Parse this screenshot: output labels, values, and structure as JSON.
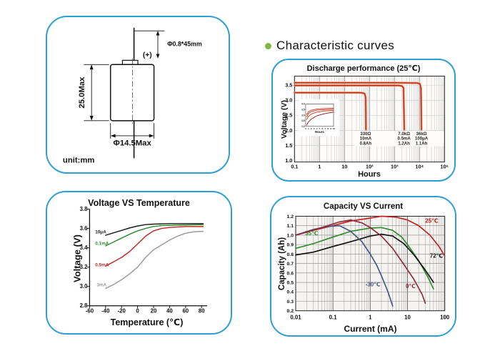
{
  "section": {
    "title": "Characteristic curves",
    "bullet_color": "#7cb93e"
  },
  "colors": {
    "panel_border": "#2e9fd4",
    "curve_red": "#c43018"
  },
  "diagram": {
    "pin_label": "Φ0.8*45mm",
    "terminal_label": "(+)",
    "height_label": "25.0Max",
    "diameter_label": "Φ14.5Max",
    "unit_label": "unit:mm"
  },
  "chart_data": [
    {
      "id": "discharge",
      "type": "line",
      "title": "Discharge performance (25℃)",
      "xlabel": "Hours",
      "ylabel": "Voltage (V)",
      "xscale": "log",
      "xlim": [
        0.1,
        100000
      ],
      "ylim": [
        0.95,
        3.8
      ],
      "grid": true,
      "xticks": [
        {
          "v": 0.1,
          "label": "0.1"
        },
        {
          "v": 1,
          "label": "1"
        },
        {
          "v": 10,
          "label": "10"
        },
        {
          "v": 100,
          "label": "10²"
        },
        {
          "v": 1000,
          "label": "10³"
        },
        {
          "v": 10000,
          "label": "10⁴"
        },
        {
          "v": 100000,
          "label": "10⁵"
        }
      ],
      "yticks": [
        1.0,
        1.5,
        2.0,
        2.5,
        3.0,
        3.5
      ],
      "series": [
        {
          "name": "330Ω 10mA 0.8Ah",
          "color": "#c43018",
          "points": [
            [
              0.1,
              3.25
            ],
            [
              10,
              3.25
            ],
            [
              40,
              3.25
            ],
            [
              55,
              3.24
            ],
            [
              65,
              3.21
            ],
            [
              70,
              3.1
            ],
            [
              72,
              2.02
            ]
          ]
        },
        {
          "name": "7.0kΩ 0.5mA 1.2Ah",
          "color": "#c43018",
          "points": [
            [
              0.1,
              3.49
            ],
            [
              100,
              3.49
            ],
            [
              1500,
              3.49
            ],
            [
              2000,
              3.47
            ],
            [
              2300,
              3.41
            ],
            [
              2450,
              2.02
            ]
          ]
        },
        {
          "name": "36kΩ 100μA 1.1Ah",
          "color": "#c43018",
          "points": [
            [
              0.1,
              3.58
            ],
            [
              1000,
              3.58
            ],
            [
              8000,
              3.57
            ],
            [
              10500,
              3.54
            ],
            [
              11500,
              3.4
            ],
            [
              12000,
              2.02
            ]
          ]
        }
      ],
      "annotations": [
        {
          "x": 70,
          "y": 1.84,
          "lines": [
            "330Ω",
            "10mA",
            "0.8Ah"
          ],
          "color": "#222"
        },
        {
          "x": 2400,
          "y": 1.84,
          "lines": [
            "7.0kΩ",
            "0.5mA",
            "1.2Ah"
          ],
          "color": "#222"
        },
        {
          "x": 12000,
          "y": 1.84,
          "lines": [
            "36kΩ",
            "100μA",
            "1.1Ah"
          ],
          "color": "#222"
        }
      ],
      "inset": {
        "xlabel": "Hours",
        "xlim": [
          0,
          10
        ],
        "ylim": [
          2.0,
          4.0
        ],
        "xticks": [
          0,
          1,
          2,
          3,
          4,
          5,
          6,
          7,
          8,
          9,
          10
        ],
        "yticks": [
          2.0,
          2.5,
          3.0,
          3.5,
          4.0
        ],
        "series": [
          {
            "color": "#c43018",
            "points": [
              [
                0.3,
                3.05
              ],
              [
                1,
                3.3
              ],
              [
                2,
                3.45
              ],
              [
                4,
                3.55
              ],
              [
                7,
                3.6
              ],
              [
                10,
                3.62
              ]
            ]
          },
          {
            "color": "#c43018",
            "points": [
              [
                0.3,
                2.85
              ],
              [
                1,
                3.15
              ],
              [
                2,
                3.32
              ],
              [
                4,
                3.45
              ],
              [
                7,
                3.5
              ],
              [
                10,
                3.52
              ]
            ]
          },
          {
            "color": "#c43018",
            "points": [
              [
                0.3,
                2.6
              ],
              [
                1,
                2.9
              ],
              [
                2,
                3.1
              ],
              [
                4,
                3.28
              ],
              [
                7,
                3.38
              ],
              [
                10,
                3.42
              ]
            ]
          },
          {
            "color": "#8a1510",
            "points": [
              [
                0.3,
                2.1
              ],
              [
                1,
                2.4
              ],
              [
                2,
                2.65
              ],
              [
                4,
                2.95
              ],
              [
                7,
                3.15
              ],
              [
                10,
                3.28
              ]
            ]
          }
        ]
      }
    },
    {
      "id": "voltage-temp",
      "type": "line",
      "title": "Voltage VS Temperature",
      "xlabel": "Temperature (℃)",
      "ylabel": "Voltage (V)",
      "xscale": "linear",
      "xlim": [
        -60,
        87
      ],
      "ylim": [
        2.8,
        3.8
      ],
      "grid": false,
      "xticks": [
        -60,
        -40,
        -20,
        0,
        20,
        40,
        60,
        80
      ],
      "yticks": [
        2.8,
        3.0,
        3.2,
        3.4,
        3.6,
        3.8
      ],
      "series": [
        {
          "name": "10μA",
          "color": "#1a1a1a",
          "label_at": [
            -53,
            3.55
          ],
          "points": [
            [
              -40,
              3.53
            ],
            [
              -30,
              3.555
            ],
            [
              -20,
              3.58
            ],
            [
              -10,
              3.605
            ],
            [
              0,
              3.625
            ],
            [
              10,
              3.64
            ],
            [
              20,
              3.645
            ],
            [
              40,
              3.65
            ],
            [
              60,
              3.65
            ],
            [
              82,
              3.65
            ]
          ]
        },
        {
          "name": "0.1mA",
          "color": "#2e8b2e",
          "label_at": [
            -53,
            3.43
          ],
          "points": [
            [
              -40,
              3.42
            ],
            [
              -30,
              3.46
            ],
            [
              -20,
              3.5
            ],
            [
              -10,
              3.54
            ],
            [
              0,
              3.575
            ],
            [
              10,
              3.6
            ],
            [
              20,
              3.62
            ],
            [
              30,
              3.63
            ],
            [
              50,
              3.635
            ],
            [
              82,
              3.64
            ]
          ]
        },
        {
          "name": "0.5mA",
          "color": "#c02828",
          "label_at": [
            -53,
            3.21
          ],
          "points": [
            [
              -40,
              3.21
            ],
            [
              -30,
              3.255
            ],
            [
              -20,
              3.3
            ],
            [
              -10,
              3.36
            ],
            [
              0,
              3.44
            ],
            [
              10,
              3.52
            ],
            [
              20,
              3.575
            ],
            [
              30,
              3.6
            ],
            [
              40,
              3.61
            ],
            [
              60,
              3.62
            ],
            [
              82,
              3.62
            ]
          ]
        },
        {
          "name": "3mA",
          "color": "#9a9a9a",
          "label_at": [
            -51,
            3.0
          ],
          "points": [
            [
              -40,
              2.98
            ],
            [
              -30,
              3.02
            ],
            [
              -20,
              3.07
            ],
            [
              -10,
              3.13
            ],
            [
              0,
              3.2
            ],
            [
              10,
              3.3
            ],
            [
              20,
              3.38
            ],
            [
              30,
              3.43
            ],
            [
              40,
              3.48
            ],
            [
              50,
              3.52
            ],
            [
              60,
              3.55
            ],
            [
              70,
              3.565
            ],
            [
              82,
              3.57
            ]
          ]
        }
      ]
    },
    {
      "id": "capacity",
      "type": "line",
      "title": "Capacity VS Current",
      "xlabel": "Current (mA)",
      "ylabel": "Capacity (Ah)",
      "xscale": "log",
      "xlim": [
        0.01,
        100
      ],
      "ylim": [
        0.2,
        1.2
      ],
      "grid": true,
      "xticks": [
        {
          "v": 0.01,
          "label": "0.01"
        },
        {
          "v": 0.1,
          "label": "0.1"
        },
        {
          "v": 1,
          "label": "1"
        },
        {
          "v": 10,
          "label": "10"
        },
        {
          "v": 100,
          "label": "100"
        }
      ],
      "yticks": [
        0.2,
        0.3,
        0.4,
        0.5,
        0.6,
        0.7,
        0.8,
        0.9,
        1.0,
        1.1,
        1.2
      ],
      "series": [
        {
          "name": "25℃",
          "color": "#c32222",
          "label_at": [
            30,
            1.13
          ],
          "points": [
            [
              0.01,
              1.0
            ],
            [
              0.03,
              1.05
            ],
            [
              0.1,
              1.1
            ],
            [
              0.3,
              1.15
            ],
            [
              1,
              1.18
            ],
            [
              2,
              1.2
            ],
            [
              5,
              1.19
            ],
            [
              10,
              1.16
            ],
            [
              20,
              1.1
            ],
            [
              40,
              1.0
            ],
            [
              70,
              0.88
            ],
            [
              100,
              0.78
            ]
          ]
        },
        {
          "name": "55℃",
          "color": "#2e8b2e",
          "label_at": [
            0.018,
            1.0
          ],
          "points": [
            [
              0.01,
              0.86
            ],
            [
              0.03,
              0.91
            ],
            [
              0.1,
              0.98
            ],
            [
              0.3,
              1.04
            ],
            [
              1,
              1.075
            ],
            [
              2,
              1.08
            ],
            [
              4,
              1.05
            ],
            [
              7,
              0.98
            ],
            [
              10,
              0.9
            ],
            [
              20,
              0.73
            ],
            [
              35,
              0.56
            ],
            [
              50,
              0.43
            ]
          ]
        },
        {
          "name": "72℃",
          "color": "#111111",
          "label_at": [
            40,
            0.76
          ],
          "points": [
            [
              0.01,
              0.79
            ],
            [
              0.03,
              0.82
            ],
            [
              0.1,
              0.88
            ],
            [
              0.3,
              0.93
            ],
            [
              1,
              0.99
            ],
            [
              2,
              1.01
            ],
            [
              4,
              0.99
            ],
            [
              8,
              0.91
            ],
            [
              15,
              0.79
            ],
            [
              30,
              0.63
            ],
            [
              50,
              0.5
            ]
          ]
        },
        {
          "name": "-30℃",
          "color": "#4a567f",
          "label_at": [
            0.75,
            0.46
          ],
          "points": [
            [
              0.01,
              1.0
            ],
            [
              0.03,
              1.06
            ],
            [
              0.07,
              1.09
            ],
            [
              0.15,
              1.1
            ],
            [
              0.3,
              1.04
            ],
            [
              0.6,
              0.93
            ],
            [
              1,
              0.8
            ],
            [
              1.5,
              0.68
            ],
            [
              2,
              0.57
            ],
            [
              3,
              0.4
            ],
            [
              4,
              0.25
            ]
          ]
        },
        {
          "name": "0℃",
          "color": "#8e2a3c",
          "label_at": [
            9,
            0.44
          ],
          "points": [
            [
              0.01,
              1.0
            ],
            [
              0.05,
              1.08
            ],
            [
              0.15,
              1.14
            ],
            [
              0.3,
              1.16
            ],
            [
              0.6,
              1.13
            ],
            [
              1,
              1.08
            ],
            [
              2,
              0.99
            ],
            [
              4,
              0.86
            ],
            [
              8,
              0.69
            ],
            [
              15,
              0.53
            ],
            [
              25,
              0.37
            ],
            [
              30,
              0.28
            ]
          ]
        }
      ]
    }
  ]
}
